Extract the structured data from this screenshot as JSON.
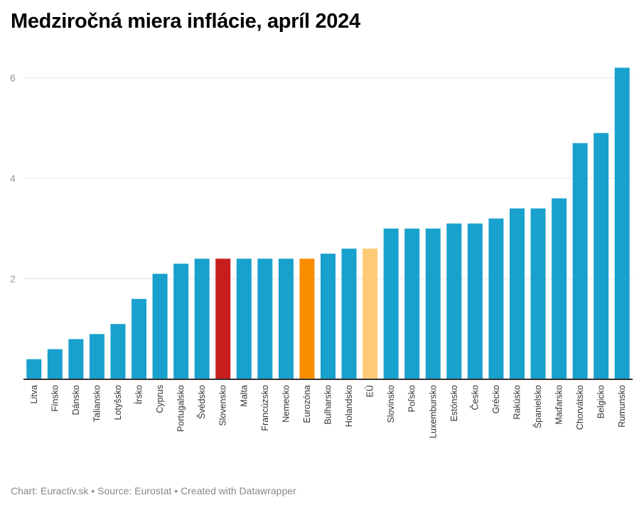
{
  "header": {
    "title": "Medziročná miera inflácie, apríl 2024"
  },
  "footer": {
    "text": "Chart: Euractiv.sk • Source: Eurostat • Created with Datawrapper"
  },
  "colors": {
    "default": "#18a1cd",
    "highlight_slovakia": "#c71e1d",
    "highlight_eurozone": "#fa8c00",
    "highlight_eu": "#ffca76",
    "grid": "#e4e4e4",
    "axis": "#333333"
  },
  "chart_data": {
    "type": "bar",
    "title": "Medziročná miera inflácie, apríl 2024",
    "xlabel": "",
    "ylabel": "",
    "ylim": [
      0,
      6.2
    ],
    "yticks": [
      2,
      4,
      6
    ],
    "grid": true,
    "legend": "none",
    "categories": [
      "Litva",
      "Fínsko",
      "Dánsko",
      "Taliansko",
      "Lotyšsko",
      "Írsko",
      "Cyprus",
      "Portugalsko",
      "Švédsko",
      "Slovensko",
      "Malta",
      "Francúzsko",
      "Nemecko",
      "Eurozóna",
      "Bulharsko",
      "Holandsko",
      "EÚ",
      "Slovinsko",
      "Poľsko",
      "Luxembursko",
      "Estónsko",
      "Česko",
      "Grécko",
      "Rakúsko",
      "Španielsko",
      "Maďarsko",
      "Chorvátsko",
      "Belgicko",
      "Rumunsko"
    ],
    "values": [
      0.4,
      0.6,
      0.8,
      0.9,
      1.1,
      1.6,
      2.1,
      2.3,
      2.4,
      2.4,
      2.4,
      2.4,
      2.4,
      2.4,
      2.5,
      2.6,
      2.6,
      3.0,
      3.0,
      3.0,
      3.1,
      3.1,
      3.2,
      3.4,
      3.4,
      3.6,
      4.7,
      4.9,
      6.2
    ],
    "highlights": {
      "Slovensko": "highlight_slovakia",
      "Eurozóna": "highlight_eurozone",
      "EÚ": "highlight_eu"
    }
  }
}
